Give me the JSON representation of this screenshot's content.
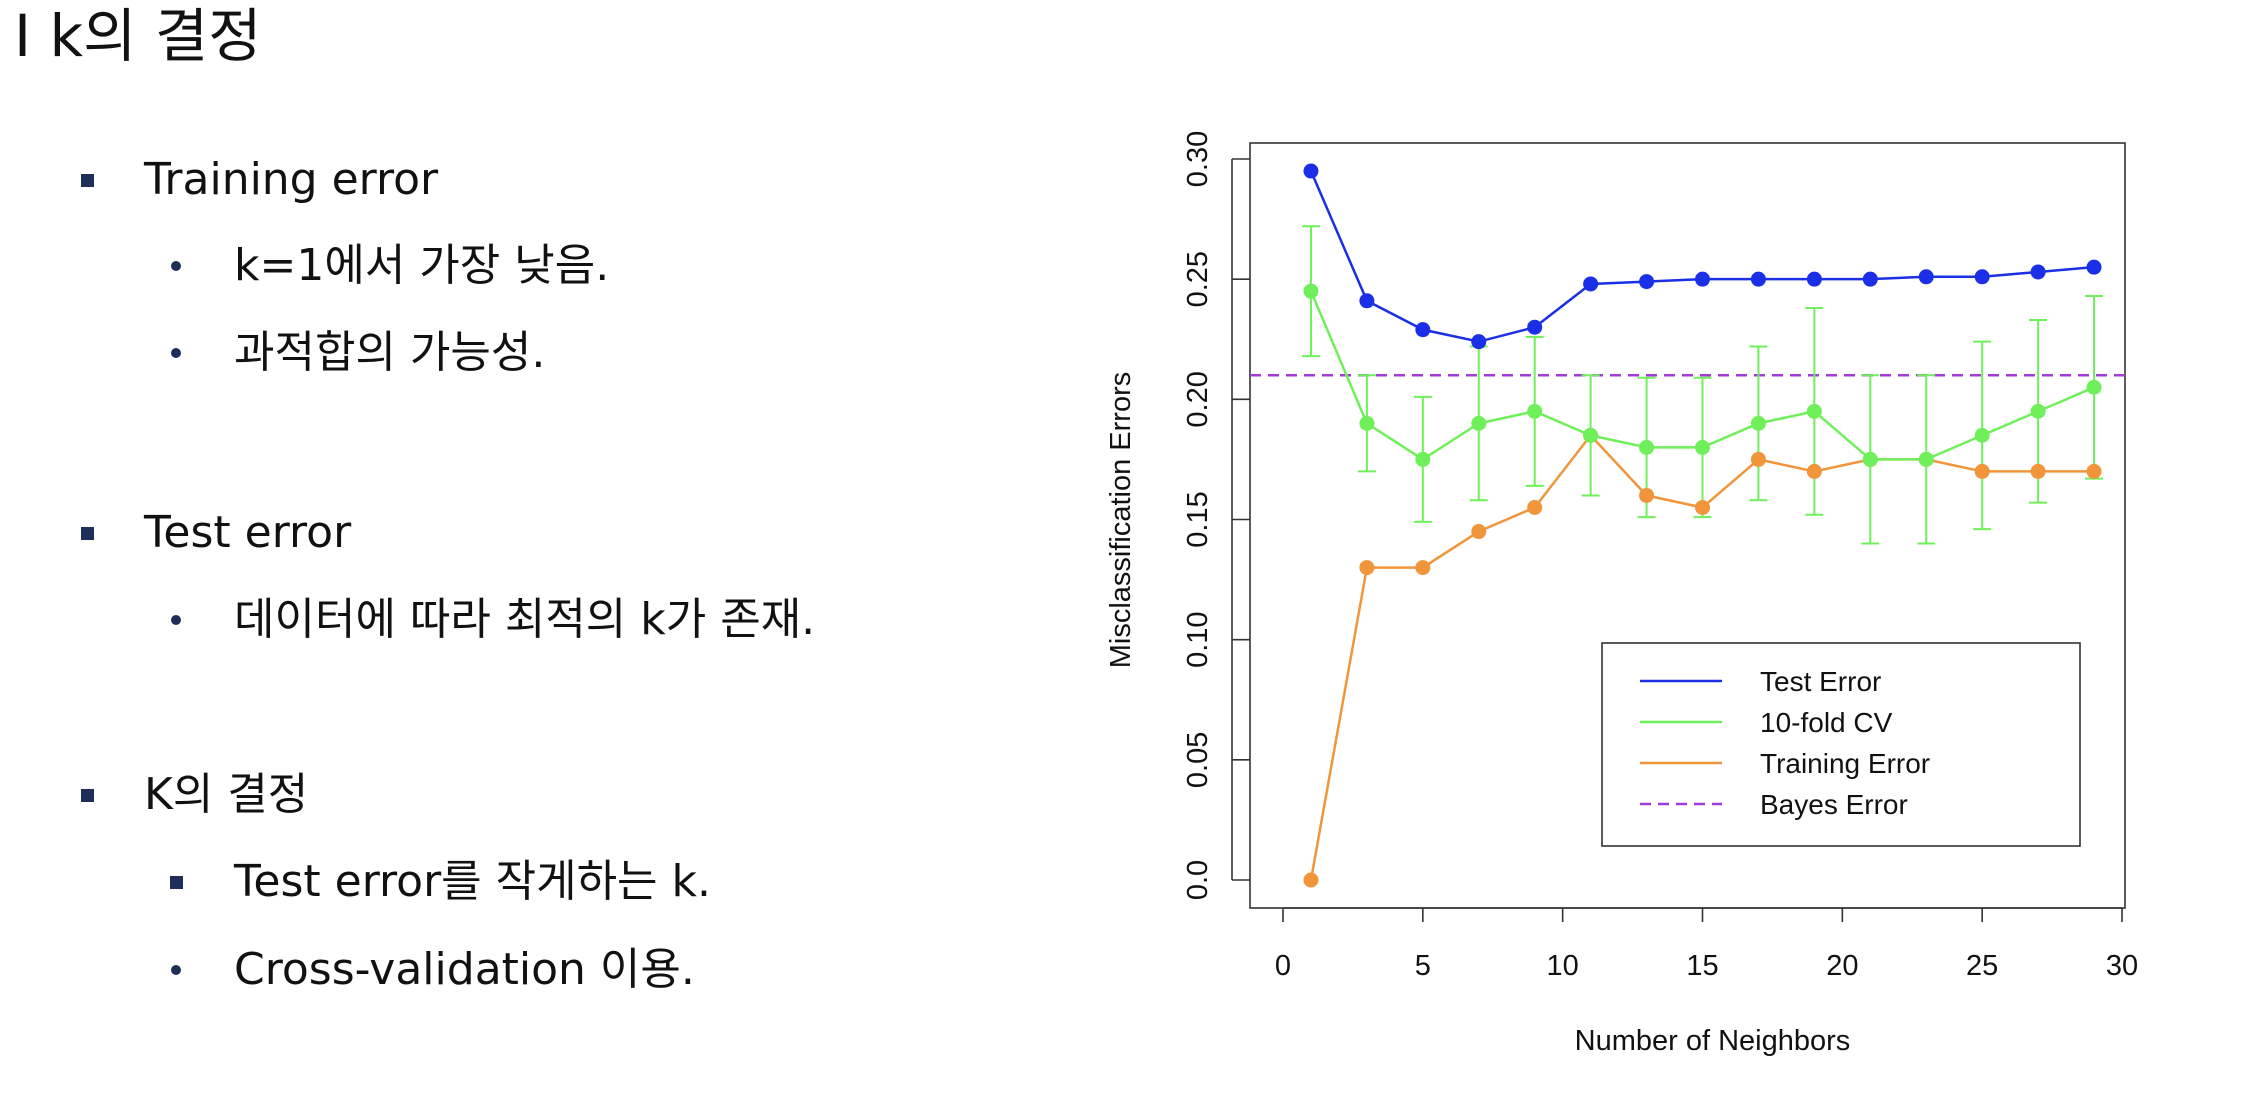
{
  "slide": {
    "title": "I k의 결정",
    "bullets": [
      {
        "level": 1,
        "marker": "square",
        "text": "Training error"
      },
      {
        "level": 2,
        "marker": "dot",
        "text": "k=1에서 가장 낮음."
      },
      {
        "level": 2,
        "marker": "dot",
        "text": "과적합의 가능성."
      },
      {
        "level": 1,
        "marker": "square",
        "text": "Test error"
      },
      {
        "level": 2,
        "marker": "dot",
        "text": "데이터에 따라 최적의 k가 존재."
      },
      {
        "level": 1,
        "marker": "square",
        "text": "K의 결정"
      },
      {
        "level": 2,
        "marker": "square",
        "text": "Test error를 작게하는 k."
      },
      {
        "level": 2,
        "marker": "dot",
        "text": "Cross-validation 이용."
      }
    ]
  },
  "chart_data": {
    "type": "line",
    "title": "",
    "xlabel": "Number of Neighbors",
    "ylabel": "Misclassification Errors",
    "xlim": [
      0,
      30
    ],
    "ylim": [
      0,
      0.3
    ],
    "xticks": [
      "0",
      "5",
      "10",
      "15",
      "20",
      "25",
      "30"
    ],
    "yticks": [
      "0.0",
      "0.05",
      "0.10",
      "0.15",
      "0.20",
      "0.25",
      "0.30"
    ],
    "grid": false,
    "legend_position": "bottom-right",
    "x": [
      1,
      3,
      5,
      7,
      9,
      11,
      13,
      15,
      17,
      19,
      21,
      23,
      25,
      27,
      29
    ],
    "series": [
      {
        "name": "Test Error",
        "color": "#1a2fe6",
        "values": [
          0.295,
          0.241,
          0.229,
          0.224,
          0.23,
          0.248,
          0.249,
          0.25,
          0.25,
          0.25,
          0.25,
          0.251,
          0.251,
          0.253,
          0.255
        ]
      },
      {
        "name": "10-fold CV",
        "color": "#6ff05a",
        "values": [
          0.245,
          0.19,
          0.175,
          0.19,
          0.195,
          0.185,
          0.18,
          0.18,
          0.19,
          0.195,
          0.175,
          0.175,
          0.185,
          0.195,
          0.205
        ],
        "error_low": [
          0.218,
          0.17,
          0.149,
          0.158,
          0.164,
          0.16,
          0.151,
          0.151,
          0.158,
          0.152,
          0.14,
          0.14,
          0.146,
          0.157,
          0.167
        ],
        "error_high": [
          0.272,
          0.21,
          0.201,
          0.222,
          0.226,
          0.21,
          0.209,
          0.209,
          0.222,
          0.238,
          0.21,
          0.21,
          0.224,
          0.233,
          0.243
        ]
      },
      {
        "name": "Training Error",
        "color": "#f0953a",
        "values": [
          0.0,
          0.13,
          0.13,
          0.145,
          0.155,
          0.185,
          0.16,
          0.155,
          0.175,
          0.17,
          0.175,
          0.175,
          0.17,
          0.17,
          0.17
        ]
      }
    ],
    "reference_lines": [
      {
        "name": "Bayes Error",
        "color": "#a13bd9",
        "style": "dashed",
        "y": 0.21
      }
    ]
  }
}
